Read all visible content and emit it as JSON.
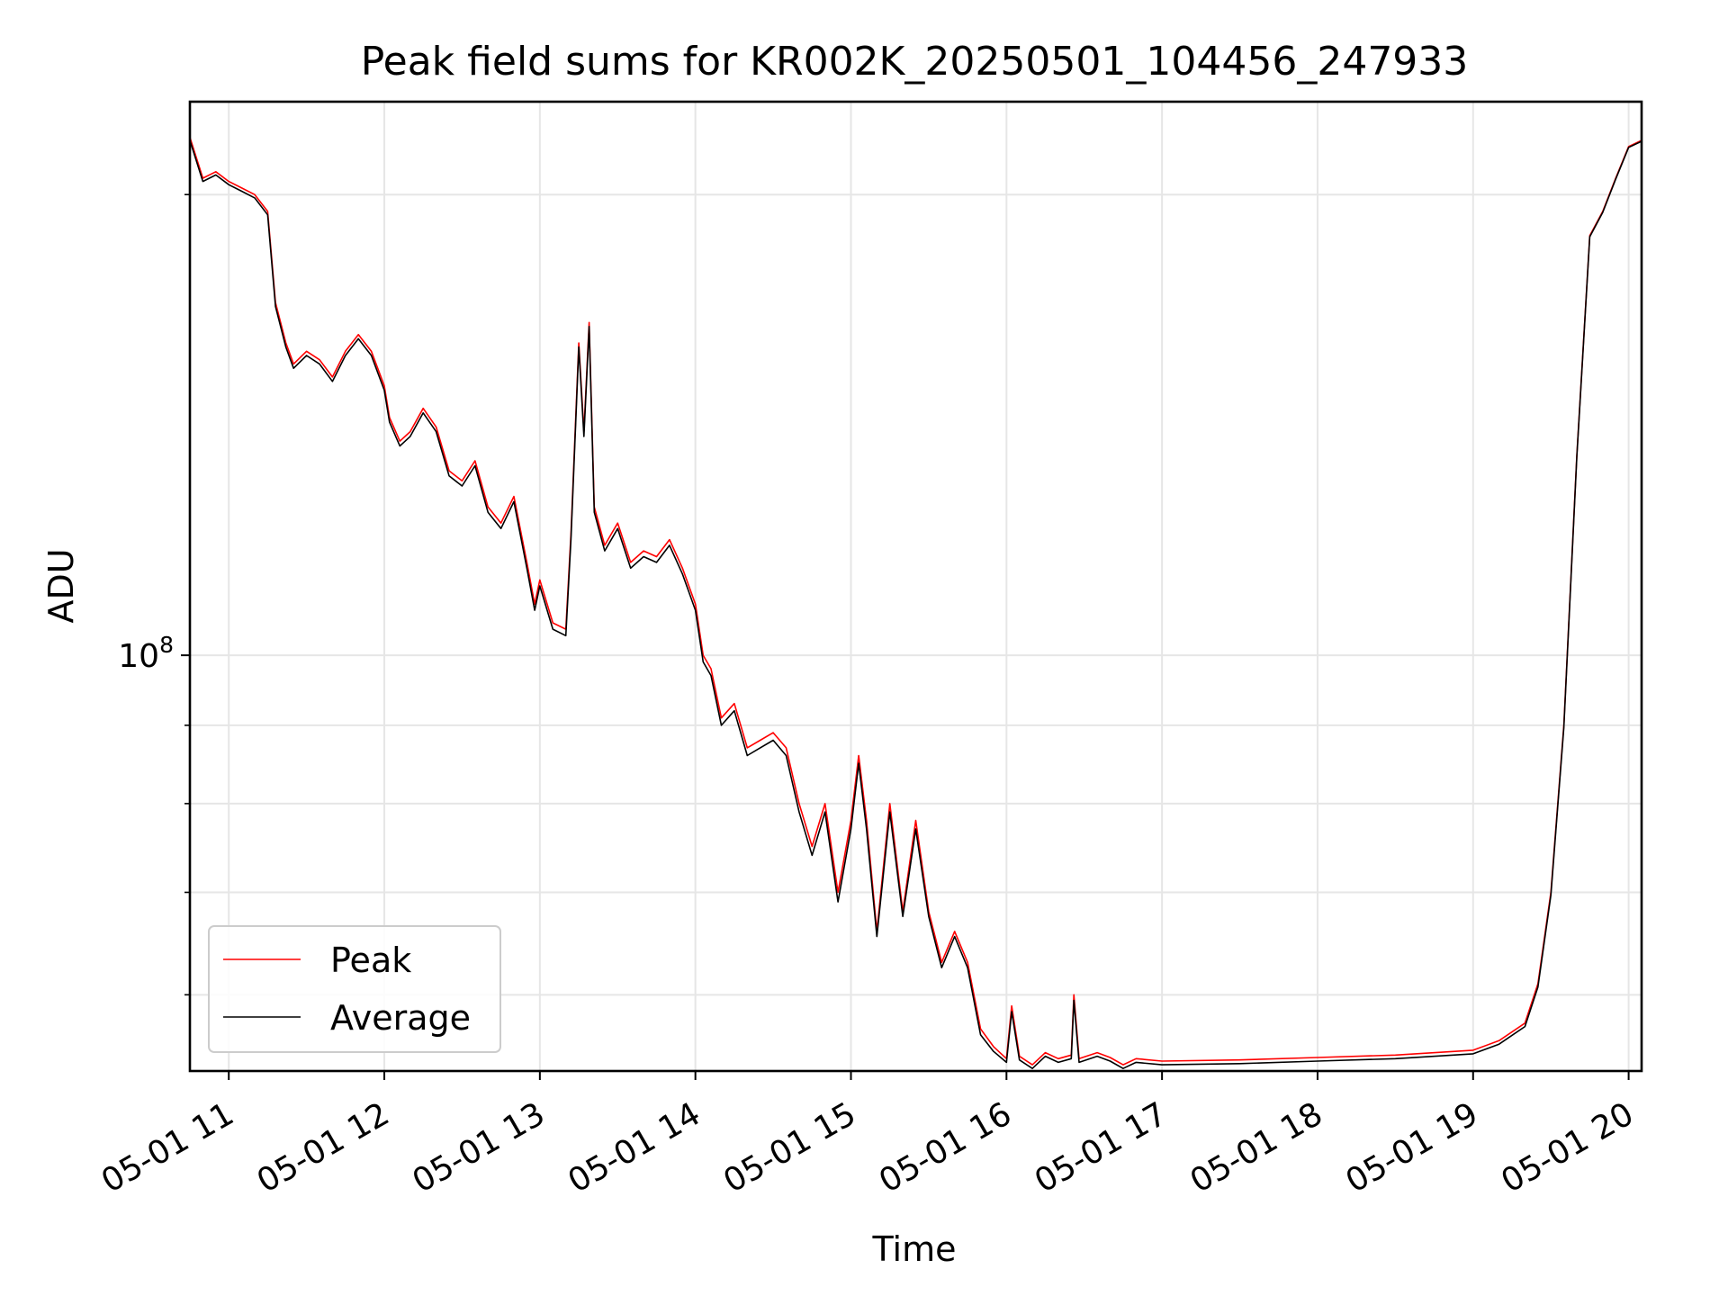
{
  "chart_data": {
    "type": "line",
    "title": "Peak field sums for KR002K_20250501_104456_247933",
    "xlabel": "Time",
    "ylabel": "ADU",
    "y_scale": "log",
    "ylim": [
      53500000.0,
      230000000.0
    ],
    "xlim": [
      "2025-05-01 10:45",
      "2025-05-01 20:05"
    ],
    "grid": true,
    "legend_position": "lower-left",
    "x_ticks": [
      "05-01 11",
      "05-01 12",
      "05-01 13",
      "05-01 14",
      "05-01 15",
      "05-01 16",
      "05-01 17",
      "05-01 18",
      "05-01 19",
      "05-01 20"
    ],
    "x_tick_times": [
      "2025-05-01 11:00",
      "2025-05-01 12:00",
      "2025-05-01 13:00",
      "2025-05-01 14:00",
      "2025-05-01 15:00",
      "2025-05-01 16:00",
      "2025-05-01 17:00",
      "2025-05-01 18:00",
      "2025-05-01 19:00",
      "2025-05-01 20:00"
    ],
    "y_major_ticks": [
      {
        "value": 100000000.0,
        "base": "10",
        "exp": "8"
      }
    ],
    "y_minor_ticks": [
      60000000.0,
      70000000.0,
      80000000.0,
      90000000.0,
      200000000.0
    ],
    "series": [
      {
        "name": "Peak",
        "color": "#ff0000",
        "points": [
          [
            "2025-05-01 10:45",
            218000000.0
          ],
          [
            "2025-05-01 10:50",
            205000000.0
          ],
          [
            "2025-05-01 10:55",
            207000000.0
          ],
          [
            "2025-05-01 11:00",
            204000000.0
          ],
          [
            "2025-05-01 11:05",
            202000000.0
          ],
          [
            "2025-05-01 11:10",
            200000000.0
          ],
          [
            "2025-05-01 11:15",
            195000000.0
          ],
          [
            "2025-05-01 11:18",
            170000000.0
          ],
          [
            "2025-05-01 11:22",
            160000000.0
          ],
          [
            "2025-05-01 11:25",
            155000000.0
          ],
          [
            "2025-05-01 11:30",
            158000000.0
          ],
          [
            "2025-05-01 11:35",
            156000000.0
          ],
          [
            "2025-05-01 11:40",
            152000000.0
          ],
          [
            "2025-05-01 11:45",
            158000000.0
          ],
          [
            "2025-05-01 11:50",
            162000000.0
          ],
          [
            "2025-05-01 11:55",
            158000000.0
          ],
          [
            "2025-05-01 12:00",
            150000000.0
          ],
          [
            "2025-05-01 12:02",
            143000000.0
          ],
          [
            "2025-05-01 12:06",
            138000000.0
          ],
          [
            "2025-05-01 12:10",
            140000000.0
          ],
          [
            "2025-05-01 12:15",
            145000000.0
          ],
          [
            "2025-05-01 12:20",
            141000000.0
          ],
          [
            "2025-05-01 12:25",
            132000000.0
          ],
          [
            "2025-05-01 12:30",
            130000000.0
          ],
          [
            "2025-05-01 12:35",
            134000000.0
          ],
          [
            "2025-05-01 12:40",
            125000000.0
          ],
          [
            "2025-05-01 12:45",
            122000000.0
          ],
          [
            "2025-05-01 12:50",
            127000000.0
          ],
          [
            "2025-05-01 12:55",
            115000000.0
          ],
          [
            "2025-05-01 12:58",
            108000000.0
          ],
          [
            "2025-05-01 13:00",
            112000000.0
          ],
          [
            "2025-05-01 13:05",
            105000000.0
          ],
          [
            "2025-05-01 13:10",
            104000000.0
          ],
          [
            "2025-05-01 13:12",
            120000000.0
          ],
          [
            "2025-05-01 13:15",
            160000000.0
          ],
          [
            "2025-05-01 13:17",
            140000000.0
          ],
          [
            "2025-05-01 13:19",
            165000000.0
          ],
          [
            "2025-05-01 13:21",
            125000000.0
          ],
          [
            "2025-05-01 13:25",
            118000000.0
          ],
          [
            "2025-05-01 13:30",
            122000000.0
          ],
          [
            "2025-05-01 13:35",
            115000000.0
          ],
          [
            "2025-05-01 13:40",
            117000000.0
          ],
          [
            "2025-05-01 13:45",
            116000000.0
          ],
          [
            "2025-05-01 13:50",
            119000000.0
          ],
          [
            "2025-05-01 13:55",
            114000000.0
          ],
          [
            "2025-05-01 14:00",
            108000000.0
          ],
          [
            "2025-05-01 14:03",
            100000000.0
          ],
          [
            "2025-05-01 14:06",
            98000000.0
          ],
          [
            "2025-05-01 14:10",
            91000000.0
          ],
          [
            "2025-05-01 14:15",
            93000000.0
          ],
          [
            "2025-05-01 14:20",
            87000000.0
          ],
          [
            "2025-05-01 14:25",
            88000000.0
          ],
          [
            "2025-05-01 14:30",
            89000000.0
          ],
          [
            "2025-05-01 14:35",
            87000000.0
          ],
          [
            "2025-05-01 14:40",
            80000000.0
          ],
          [
            "2025-05-01 14:45",
            75000000.0
          ],
          [
            "2025-05-01 14:50",
            80000000.0
          ],
          [
            "2025-05-01 14:55",
            70000000.0
          ],
          [
            "2025-05-01 15:00",
            78000000.0
          ],
          [
            "2025-05-01 15:03",
            86000000.0
          ],
          [
            "2025-05-01 15:06",
            78000000.0
          ],
          [
            "2025-05-01 15:10",
            66000000.0
          ],
          [
            "2025-05-01 15:15",
            80000000.0
          ],
          [
            "2025-05-01 15:20",
            68000000.0
          ],
          [
            "2025-05-01 15:25",
            78000000.0
          ],
          [
            "2025-05-01 15:30",
            68000000.0
          ],
          [
            "2025-05-01 15:35",
            63000000.0
          ],
          [
            "2025-05-01 15:40",
            66000000.0
          ],
          [
            "2025-05-01 15:45",
            63000000.0
          ],
          [
            "2025-05-01 15:50",
            57000000.0
          ],
          [
            "2025-05-01 15:55",
            55500000.0
          ],
          [
            "2025-05-01 16:00",
            54500000.0
          ],
          [
            "2025-05-01 16:02",
            59000000.0
          ],
          [
            "2025-05-01 16:05",
            54700000.0
          ],
          [
            "2025-05-01 16:10",
            54000000.0
          ],
          [
            "2025-05-01 16:15",
            55000000.0
          ],
          [
            "2025-05-01 16:20",
            54500000.0
          ],
          [
            "2025-05-01 16:25",
            54800000.0
          ],
          [
            "2025-05-01 16:26",
            60000000.0
          ],
          [
            "2025-05-01 16:28",
            54500000.0
          ],
          [
            "2025-05-01 16:35",
            55000000.0
          ],
          [
            "2025-05-01 16:40",
            54600000.0
          ],
          [
            "2025-05-01 16:45",
            54000000.0
          ],
          [
            "2025-05-01 16:50",
            54500000.0
          ],
          [
            "2025-05-01 17:00",
            54300000.0
          ],
          [
            "2025-05-01 17:30",
            54400000.0
          ],
          [
            "2025-05-01 18:00",
            54600000.0
          ],
          [
            "2025-05-01 18:30",
            54800000.0
          ],
          [
            "2025-05-01 19:00",
            55200000.0
          ],
          [
            "2025-05-01 19:10",
            56000000.0
          ],
          [
            "2025-05-01 19:20",
            57500000.0
          ],
          [
            "2025-05-01 19:25",
            61000000.0
          ],
          [
            "2025-05-01 19:30",
            70000000.0
          ],
          [
            "2025-05-01 19:35",
            90000000.0
          ],
          [
            "2025-05-01 19:40",
            135000000.0
          ],
          [
            "2025-05-01 19:45",
            188000000.0
          ],
          [
            "2025-05-01 19:50",
            195000000.0
          ],
          [
            "2025-05-01 19:55",
            205000000.0
          ],
          [
            "2025-05-01 20:00",
            215000000.0
          ],
          [
            "2025-05-01 20:05",
            217000000.0
          ]
        ]
      },
      {
        "name": "Average",
        "color": "#000000",
        "points": [
          [
            "2025-05-01 10:45",
            217000000.0
          ],
          [
            "2025-05-01 10:50",
            204000000.0
          ],
          [
            "2025-05-01 10:55",
            206000000.0
          ],
          [
            "2025-05-01 11:00",
            203000000.0
          ],
          [
            "2025-05-01 11:05",
            201000000.0
          ],
          [
            "2025-05-01 11:10",
            199000000.0
          ],
          [
            "2025-05-01 11:15",
            194000000.0
          ],
          [
            "2025-05-01 11:18",
            169000000.0
          ],
          [
            "2025-05-01 11:22",
            159000000.0
          ],
          [
            "2025-05-01 11:25",
            154000000.0
          ],
          [
            "2025-05-01 11:30",
            157000000.0
          ],
          [
            "2025-05-01 11:35",
            155000000.0
          ],
          [
            "2025-05-01 11:40",
            151000000.0
          ],
          [
            "2025-05-01 11:45",
            157000000.0
          ],
          [
            "2025-05-01 11:50",
            161000000.0
          ],
          [
            "2025-05-01 11:55",
            157000000.0
          ],
          [
            "2025-05-01 12:00",
            149000000.0
          ],
          [
            "2025-05-01 12:02",
            142000000.0
          ],
          [
            "2025-05-01 12:06",
            137000000.0
          ],
          [
            "2025-05-01 12:10",
            139000000.0
          ],
          [
            "2025-05-01 12:15",
            144000000.0
          ],
          [
            "2025-05-01 12:20",
            140000000.0
          ],
          [
            "2025-05-01 12:25",
            131000000.0
          ],
          [
            "2025-05-01 12:30",
            129000000.0
          ],
          [
            "2025-05-01 12:35",
            133000000.0
          ],
          [
            "2025-05-01 12:40",
            124000000.0
          ],
          [
            "2025-05-01 12:45",
            121000000.0
          ],
          [
            "2025-05-01 12:50",
            126000000.0
          ],
          [
            "2025-05-01 12:55",
            114000000.0
          ],
          [
            "2025-05-01 12:58",
            107000000.0
          ],
          [
            "2025-05-01 13:00",
            111000000.0
          ],
          [
            "2025-05-01 13:05",
            104000000.0
          ],
          [
            "2025-05-01 13:10",
            103000000.0
          ],
          [
            "2025-05-01 13:12",
            119000000.0
          ],
          [
            "2025-05-01 13:15",
            159000000.0
          ],
          [
            "2025-05-01 13:17",
            139000000.0
          ],
          [
            "2025-05-01 13:19",
            164000000.0
          ],
          [
            "2025-05-01 13:21",
            124000000.0
          ],
          [
            "2025-05-01 13:25",
            117000000.0
          ],
          [
            "2025-05-01 13:30",
            121000000.0
          ],
          [
            "2025-05-01 13:35",
            114000000.0
          ],
          [
            "2025-05-01 13:40",
            116000000.0
          ],
          [
            "2025-05-01 13:45",
            115000000.0
          ],
          [
            "2025-05-01 13:50",
            118000000.0
          ],
          [
            "2025-05-01 13:55",
            113000000.0
          ],
          [
            "2025-05-01 14:00",
            107000000.0
          ],
          [
            "2025-05-01 14:03",
            99000000.0
          ],
          [
            "2025-05-01 14:06",
            97000000.0
          ],
          [
            "2025-05-01 14:10",
            90000000.0
          ],
          [
            "2025-05-01 14:15",
            92000000.0
          ],
          [
            "2025-05-01 14:20",
            86000000.0
          ],
          [
            "2025-05-01 14:25",
            87000000.0
          ],
          [
            "2025-05-01 14:30",
            88000000.0
          ],
          [
            "2025-05-01 14:35",
            86000000.0
          ],
          [
            "2025-05-01 14:40",
            79000000.0
          ],
          [
            "2025-05-01 14:45",
            74000000.0
          ],
          [
            "2025-05-01 14:50",
            79000000.0
          ],
          [
            "2025-05-01 14:55",
            69000000.0
          ],
          [
            "2025-05-01 15:00",
            77000000.0
          ],
          [
            "2025-05-01 15:03",
            85000000.0
          ],
          [
            "2025-05-01 15:06",
            77000000.0
          ],
          [
            "2025-05-01 15:10",
            65500000.0
          ],
          [
            "2025-05-01 15:15",
            79000000.0
          ],
          [
            "2025-05-01 15:20",
            67500000.0
          ],
          [
            "2025-05-01 15:25",
            77000000.0
          ],
          [
            "2025-05-01 15:30",
            67500000.0
          ],
          [
            "2025-05-01 15:35",
            62500000.0
          ],
          [
            "2025-05-01 15:40",
            65500000.0
          ],
          [
            "2025-05-01 15:45",
            62500000.0
          ],
          [
            "2025-05-01 15:50",
            56500000.0
          ],
          [
            "2025-05-01 15:55",
            55100000.0
          ],
          [
            "2025-05-01 16:00",
            54200000.0
          ],
          [
            "2025-05-01 16:02",
            58500000.0
          ],
          [
            "2025-05-01 16:05",
            54400000.0
          ],
          [
            "2025-05-01 16:10",
            53700000.0
          ],
          [
            "2025-05-01 16:15",
            54700000.0
          ],
          [
            "2025-05-01 16:20",
            54200000.0
          ],
          [
            "2025-05-01 16:25",
            54500000.0
          ],
          [
            "2025-05-01 16:26",
            59500000.0
          ],
          [
            "2025-05-01 16:28",
            54200000.0
          ],
          [
            "2025-05-01 16:35",
            54700000.0
          ],
          [
            "2025-05-01 16:40",
            54300000.0
          ],
          [
            "2025-05-01 16:45",
            53700000.0
          ],
          [
            "2025-05-01 16:50",
            54200000.0
          ],
          [
            "2025-05-01 17:00",
            54000000.0
          ],
          [
            "2025-05-01 17:30",
            54100000.0
          ],
          [
            "2025-05-01 18:00",
            54300000.0
          ],
          [
            "2025-05-01 18:30",
            54500000.0
          ],
          [
            "2025-05-01 19:00",
            54900000.0
          ],
          [
            "2025-05-01 19:10",
            55700000.0
          ],
          [
            "2025-05-01 19:20",
            57200000.0
          ],
          [
            "2025-05-01 19:25",
            60700000.0
          ],
          [
            "2025-05-01 19:30",
            69700000.0
          ],
          [
            "2025-05-01 19:35",
            89700000.0
          ],
          [
            "2025-05-01 19:40",
            134700000.0
          ],
          [
            "2025-05-01 19:45",
            187700000.0
          ],
          [
            "2025-05-01 19:50",
            194700000.0
          ],
          [
            "2025-05-01 19:55",
            204700000.0
          ],
          [
            "2025-05-01 20:00",
            214700000.0
          ],
          [
            "2025-05-01 20:05",
            216700000.0
          ]
        ]
      }
    ]
  }
}
